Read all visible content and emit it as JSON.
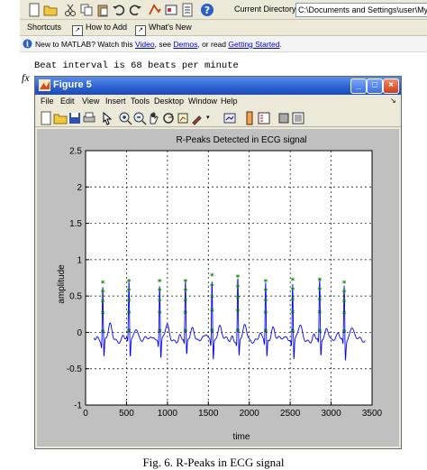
{
  "current_directory": {
    "label": "Current Directory:",
    "value": "C:\\Documents and Settings\\user\\My Docume"
  },
  "shortcuts_bar": {
    "items": [
      {
        "label": "Shortcuts"
      },
      {
        "label": "How to Add"
      },
      {
        "label": "What's New"
      }
    ]
  },
  "notice": {
    "prefix": "New to MATLAB? Watch this ",
    "video_link": "Video",
    "middle": ", see ",
    "demos_link": "Demos",
    "middle2": ", or read ",
    "getting_started_link": "Getting Started",
    "suffix": "."
  },
  "command_window": {
    "output_line": "Beat interval is 68 beats per minute",
    "prompt_symbol": "fx"
  },
  "figure": {
    "title": "Figure 5",
    "menu": [
      "File",
      "Edit",
      "View",
      "Insert",
      "Tools",
      "Desktop",
      "Window",
      "Help"
    ]
  },
  "chart_data": {
    "type": "line",
    "title": "R-Peaks Detected in ECG signal",
    "xlabel": "time",
    "ylabel": "amplitude",
    "xlim": [
      0,
      3500
    ],
    "ylim": [
      -1,
      2.5
    ],
    "xticks": [
      "0",
      "500",
      "1000",
      "1500",
      "2000",
      "2500",
      "3000",
      "3500"
    ],
    "yticks": [
      "-1",
      "-0.5",
      "0",
      "0.5",
      "1",
      "1.5",
      "2",
      "2.5"
    ],
    "grid": true,
    "series": [
      {
        "name": "",
        "color": "#0000ff",
        "description_values": "ECG trace, baseline ≈ -0.1, R-peaks at listed x positions"
      },
      {
        "name": "",
        "color": "#008800",
        "marker": "*",
        "description_values": "detected R-peak points"
      }
    ],
    "r_peak_x": [
      210,
      530,
      905,
      1220,
      1545,
      1860,
      2200,
      2530,
      2860,
      3160
    ],
    "r_peak_y": [
      0.68,
      0.7,
      0.7,
      0.7,
      0.78,
      0.76,
      0.7,
      0.72,
      0.72,
      0.68
    ],
    "baseline": -0.1
  },
  "caption": "Fig. 6. R-Peaks in ECG signal"
}
